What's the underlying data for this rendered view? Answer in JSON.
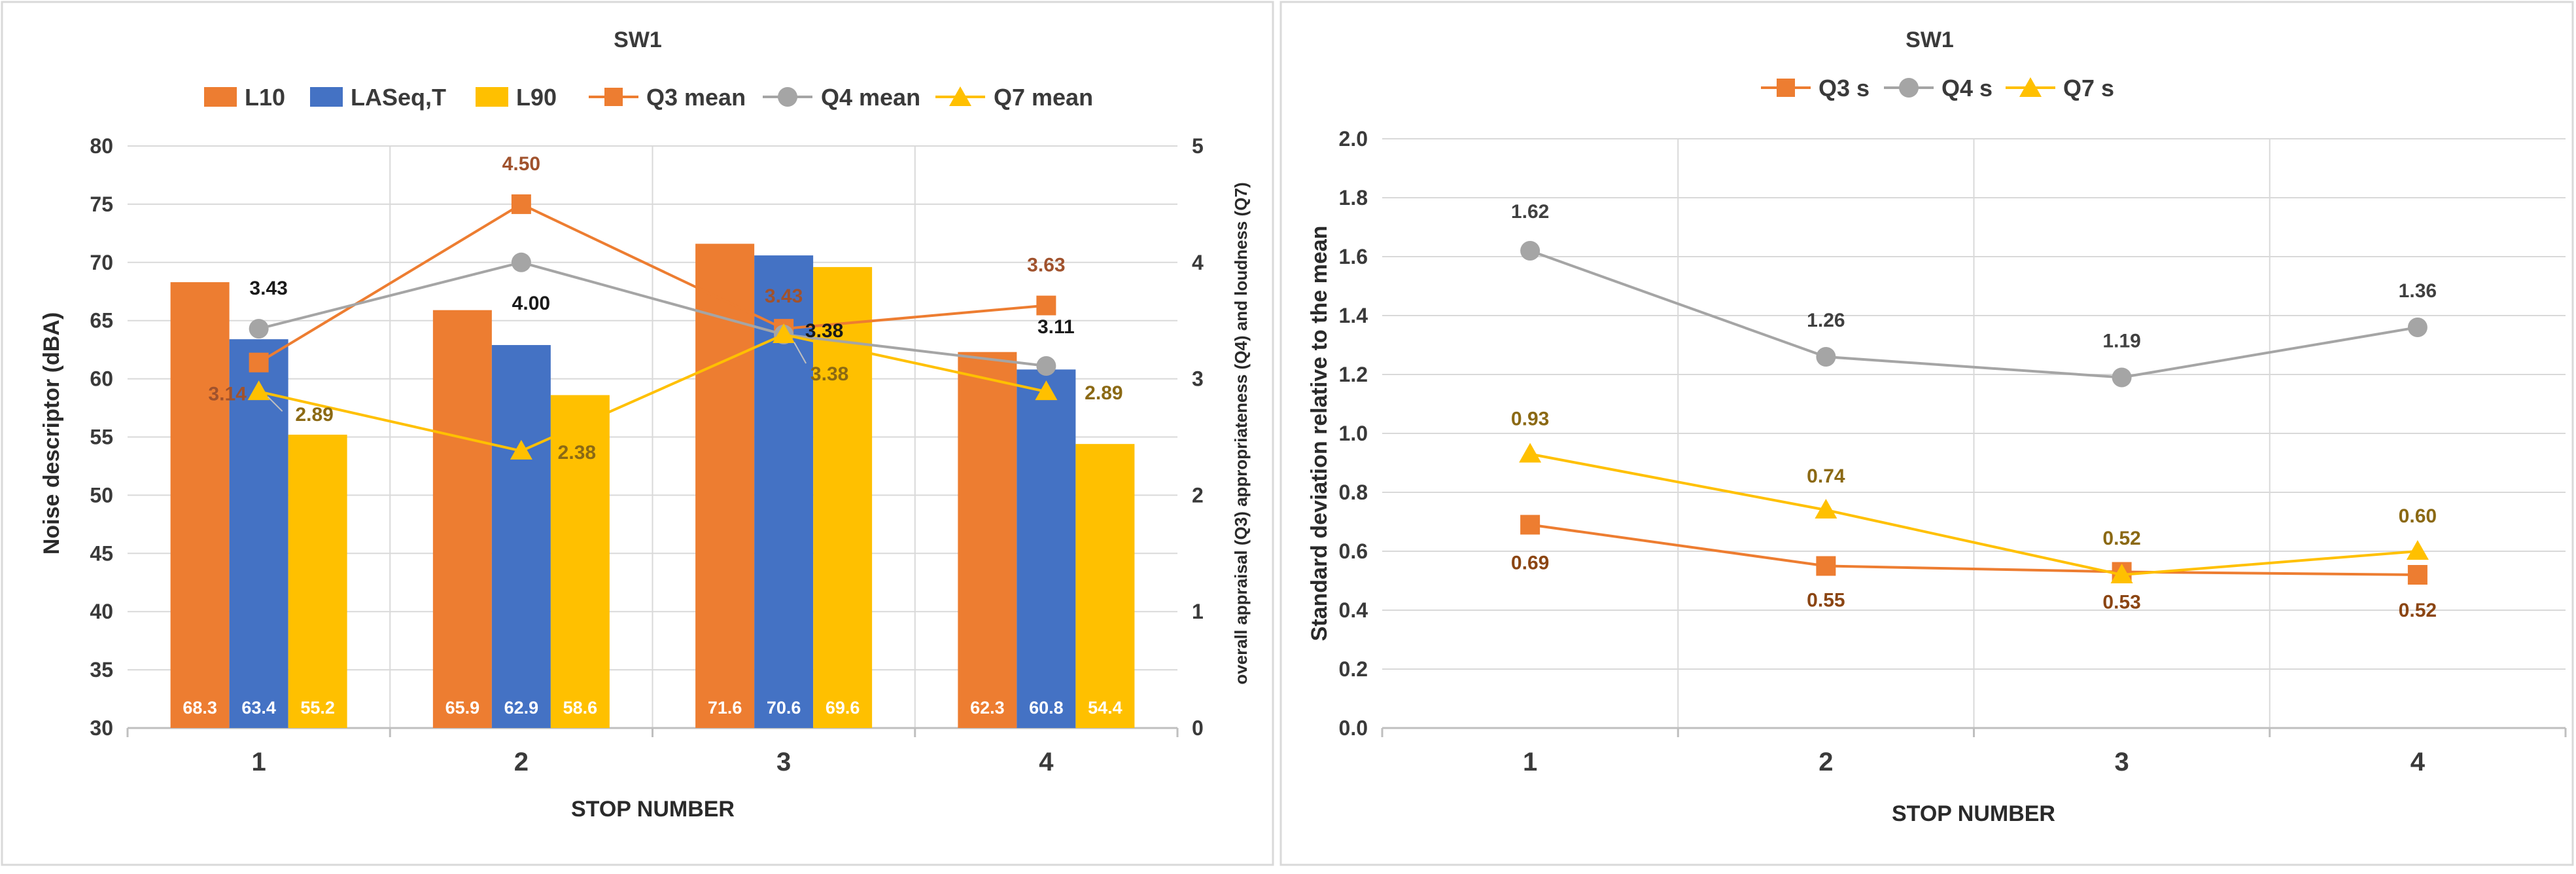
{
  "chart_data": [
    {
      "type": "bar",
      "title": "SW1",
      "xlabel": "STOP NUMBER",
      "ylabel": "Noise descriptor (dBA)",
      "ylabel_right": "overall appraisal (Q3) appropriateness (Q4) and loudness (Q7)",
      "categories": [
        "1",
        "2",
        "3",
        "4"
      ],
      "ylim": [
        30,
        80
      ],
      "yticks": [
        "30",
        "35",
        "40",
        "45",
        "50",
        "55",
        "60",
        "65",
        "70",
        "75",
        "80"
      ],
      "ylim_right": [
        0,
        5
      ],
      "yticks_right": [
        "0",
        "1",
        "2",
        "3",
        "4",
        "5"
      ],
      "bar_series": [
        {
          "name": "L10",
          "color": "#ED7D31",
          "values": [
            68.3,
            65.9,
            71.6,
            62.3
          ],
          "labels": [
            "68.3",
            "65.9",
            "71.6",
            "62.3"
          ]
        },
        {
          "name": "LASeq,T",
          "color": "#4472C4",
          "values": [
            63.4,
            62.9,
            70.6,
            60.8
          ],
          "labels": [
            "63.4",
            "62.9",
            "70.6",
            "60.8"
          ]
        },
        {
          "name": "L90",
          "color": "#FFC000",
          "values": [
            55.2,
            58.6,
            69.6,
            54.4
          ],
          "labels": [
            "55.2",
            "58.6",
            "69.6",
            "54.4"
          ]
        }
      ],
      "line_series": [
        {
          "name": "Q3 mean",
          "color": "#ED7D31",
          "label_color": "#A0522D",
          "marker": "square",
          "values": [
            3.14,
            4.5,
            3.43,
            3.63
          ],
          "labels": [
            "3.14",
            "4.50",
            "3.43",
            "3.63"
          ]
        },
        {
          "name": "Q4 mean",
          "color": "#A5A5A5",
          "label_color": "#1a1a1a",
          "marker": "circle",
          "values": [
            3.43,
            4.0,
            3.38,
            3.11
          ],
          "labels": [
            "3.43",
            "4.00",
            "3.38",
            "3.11"
          ]
        },
        {
          "name": "Q7 mean",
          "color": "#FFC000",
          "label_color": "#8B6914",
          "marker": "triangle",
          "values": [
            2.89,
            2.38,
            3.38,
            2.89
          ],
          "labels": [
            "2.89",
            "2.38",
            "3.38",
            "2.89"
          ]
        }
      ]
    },
    {
      "type": "line",
      "title": "SW1",
      "xlabel": "STOP NUMBER",
      "ylabel": "Standard deviation relative to the mean",
      "categories": [
        "1",
        "2",
        "3",
        "4"
      ],
      "ylim": [
        0,
        2
      ],
      "yticks": [
        "0.0",
        "0.2",
        "0.4",
        "0.6",
        "0.8",
        "1.0",
        "1.2",
        "1.4",
        "1.6",
        "1.8",
        "2.0"
      ],
      "series": [
        {
          "name": "Q3 s",
          "color": "#ED7D31",
          "label_color": "#8B4513",
          "marker": "square",
          "values": [
            0.69,
            0.55,
            0.53,
            0.52
          ],
          "labels": [
            "0.69",
            "0.55",
            "0.53",
            "0.52"
          ]
        },
        {
          "name": "Q4 s",
          "color": "#A5A5A5",
          "label_color": "#404040",
          "marker": "circle",
          "values": [
            1.62,
            1.26,
            1.19,
            1.36
          ],
          "labels": [
            "1.62",
            "1.26",
            "1.19",
            "1.36"
          ]
        },
        {
          "name": "Q7 s",
          "color": "#FFC000",
          "label_color": "#8B6914",
          "marker": "triangle",
          "values": [
            0.93,
            0.74,
            0.52,
            0.6
          ],
          "labels": [
            "0.93",
            "0.74",
            "0.52",
            "0.60"
          ]
        }
      ]
    }
  ]
}
